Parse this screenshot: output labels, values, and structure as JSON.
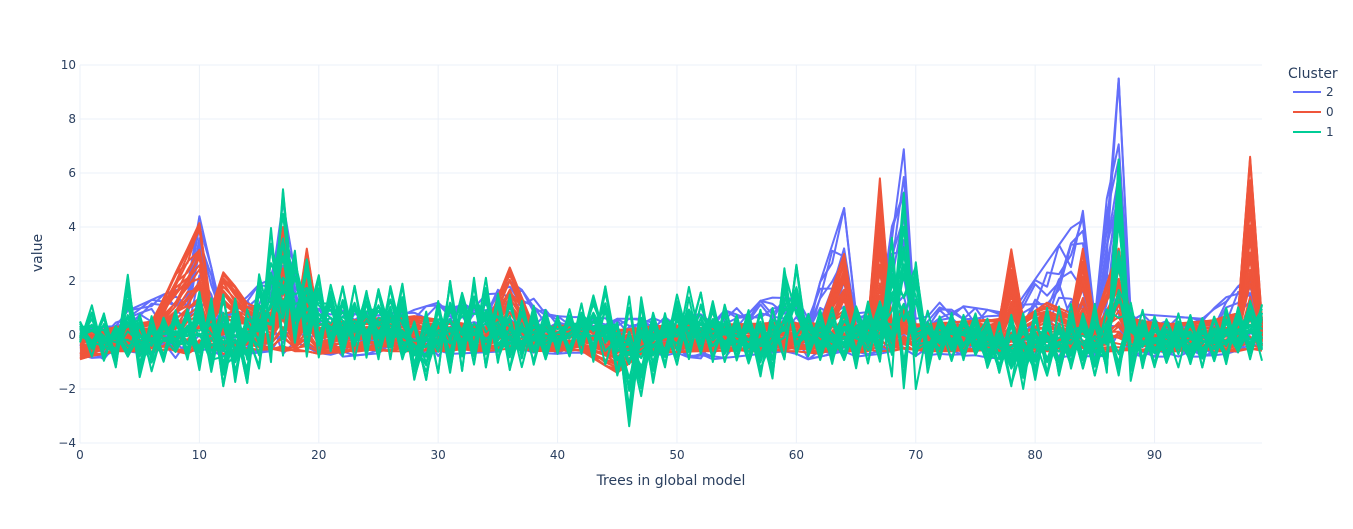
{
  "chart_data": {
    "type": "line",
    "title": "",
    "xlabel": "Trees in global model",
    "ylabel": "value",
    "xlim": [
      0,
      99
    ],
    "ylim": [
      -4,
      10
    ],
    "xticks": [
      0,
      10,
      20,
      30,
      40,
      50,
      60,
      70,
      80,
      90
    ],
    "yticks": [
      -4,
      -2,
      0,
      2,
      4,
      6,
      8,
      10
    ],
    "grid": true,
    "legend": {
      "title": "Cluster",
      "position": "top-right"
    },
    "cluster_envelopes": [
      {
        "name": "2",
        "color": "#636efa",
        "x": [
          0,
          2,
          4,
          7,
          9,
          10,
          12,
          16,
          17,
          19,
          22,
          27,
          30,
          31,
          36,
          40,
          45,
          47,
          53,
          59,
          60,
          61,
          64,
          65,
          67,
          69,
          70,
          72,
          78,
          84,
          85,
          87,
          88,
          94,
          98,
          99
        ],
        "upper": [
          0.2,
          0.3,
          0.9,
          1.5,
          1.8,
          4.4,
          0.6,
          2.3,
          4.9,
          1.0,
          0.9,
          0.8,
          1.2,
          1.0,
          2.0,
          0.7,
          0.6,
          0.6,
          0.8,
          1.5,
          1.4,
          0.6,
          4.7,
          0.8,
          0.9,
          7.2,
          0.6,
          1.2,
          0.8,
          4.6,
          0.6,
          9.5,
          0.8,
          0.6,
          2.2,
          0.4
        ],
        "lower": [
          -0.8,
          -0.9,
          -0.6,
          -0.8,
          -0.9,
          -0.6,
          -0.8,
          -0.6,
          -0.7,
          -0.6,
          -0.8,
          -0.6,
          -0.9,
          -0.7,
          -0.6,
          -0.7,
          -0.6,
          -0.7,
          -0.9,
          -0.6,
          -0.7,
          -0.9,
          -0.6,
          -0.8,
          -0.7,
          -0.5,
          -0.8,
          -0.7,
          -0.9,
          -0.8,
          -0.9,
          -0.6,
          -0.8,
          -0.8,
          -0.6,
          -0.6
        ]
      },
      {
        "name": "0",
        "color": "#ef553b",
        "x": [
          0,
          3,
          6,
          9,
          10,
          11,
          12,
          14,
          16,
          17,
          18,
          19,
          20,
          24,
          28,
          31,
          34,
          36,
          38,
          42,
          45,
          47,
          52,
          55,
          60,
          62,
          64,
          65,
          66,
          67,
          68,
          69,
          70,
          74,
          77,
          78,
          79,
          81,
          83,
          84,
          85,
          87,
          88,
          91,
          94,
          97,
          98,
          99
        ],
        "upper": [
          0.0,
          0.3,
          0.5,
          3.2,
          4.2,
          1.0,
          2.4,
          1.2,
          0.8,
          4.0,
          0.3,
          3.2,
          0.4,
          0.6,
          0.7,
          0.5,
          0.3,
          2.5,
          0.3,
          0.4,
          0.2,
          0.3,
          0.4,
          0.4,
          0.5,
          0.4,
          3.0,
          0.3,
          0.4,
          5.8,
          0.3,
          1.0,
          0.4,
          0.5,
          0.6,
          3.2,
          0.6,
          1.2,
          0.8,
          3.2,
          0.6,
          3.2,
          0.6,
          0.4,
          0.5,
          0.8,
          6.6,
          0.5
        ],
        "lower": [
          -0.9,
          -0.6,
          -0.6,
          -0.7,
          -0.6,
          -0.5,
          -0.7,
          -0.5,
          -0.6,
          -0.6,
          -0.6,
          -0.6,
          -0.7,
          -0.6,
          -0.6,
          -0.6,
          -0.6,
          -0.5,
          -0.6,
          -0.6,
          -1.4,
          -0.7,
          -0.6,
          -0.6,
          -0.6,
          -0.7,
          -0.6,
          -0.7,
          -0.6,
          -0.6,
          -0.6,
          -0.5,
          -0.6,
          -0.6,
          -0.6,
          -0.5,
          -0.6,
          -0.6,
          -0.6,
          -0.6,
          -0.6,
          -0.6,
          -0.6,
          -0.6,
          -0.6,
          -0.6,
          -0.5,
          -0.6
        ]
      },
      {
        "name": "1",
        "color": "#00cc96",
        "x": [
          0,
          1,
          3,
          4,
          5,
          8,
          10,
          12,
          14,
          17,
          19,
          22,
          27,
          28,
          31,
          34,
          36,
          40,
          44,
          45,
          46,
          49,
          51,
          55,
          58,
          59,
          60,
          61,
          64,
          67,
          69,
          71,
          72,
          75,
          77,
          79,
          82,
          84,
          86,
          87,
          88,
          90,
          95,
          98,
          99
        ],
        "upper": [
          0.5,
          1.1,
          0.5,
          2.3,
          0.8,
          1.0,
          1.6,
          1.5,
          1.2,
          5.4,
          2.8,
          1.8,
          1.9,
          0.5,
          2.0,
          2.3,
          1.5,
          0.8,
          1.8,
          0.9,
          1.5,
          1.2,
          1.8,
          0.9,
          1.0,
          2.7,
          2.6,
          0.8,
          1.2,
          1.5,
          5.7,
          0.9,
          1.0,
          0.8,
          0.7,
          0.8,
          1.1,
          1.2,
          1.1,
          6.5,
          1.2,
          0.8,
          0.8,
          1.4,
          1.3
        ],
        "lower": [
          -0.3,
          -0.8,
          -1.2,
          -0.8,
          -1.6,
          -1.0,
          -1.3,
          -2.2,
          -1.8,
          -1.0,
          -0.8,
          -0.9,
          -0.9,
          -1.8,
          -1.4,
          -1.2,
          -1.5,
          -0.7,
          -1.1,
          -1.5,
          -3.4,
          -1.2,
          -1.0,
          -1.0,
          -1.8,
          -0.9,
          -0.8,
          -1.0,
          -1.3,
          -1.1,
          -2.6,
          -1.4,
          -1.0,
          -0.9,
          -1.8,
          -2.0,
          -1.5,
          -1.4,
          -1.6,
          -1.5,
          -1.7,
          -1.2,
          -1.2,
          -0.9,
          -1.0
        ]
      }
    ],
    "series": [
      {
        "name": "2",
        "color": "#636efa"
      },
      {
        "name": "0",
        "color": "#ef553b"
      },
      {
        "name": "1",
        "color": "#00cc96"
      }
    ]
  }
}
